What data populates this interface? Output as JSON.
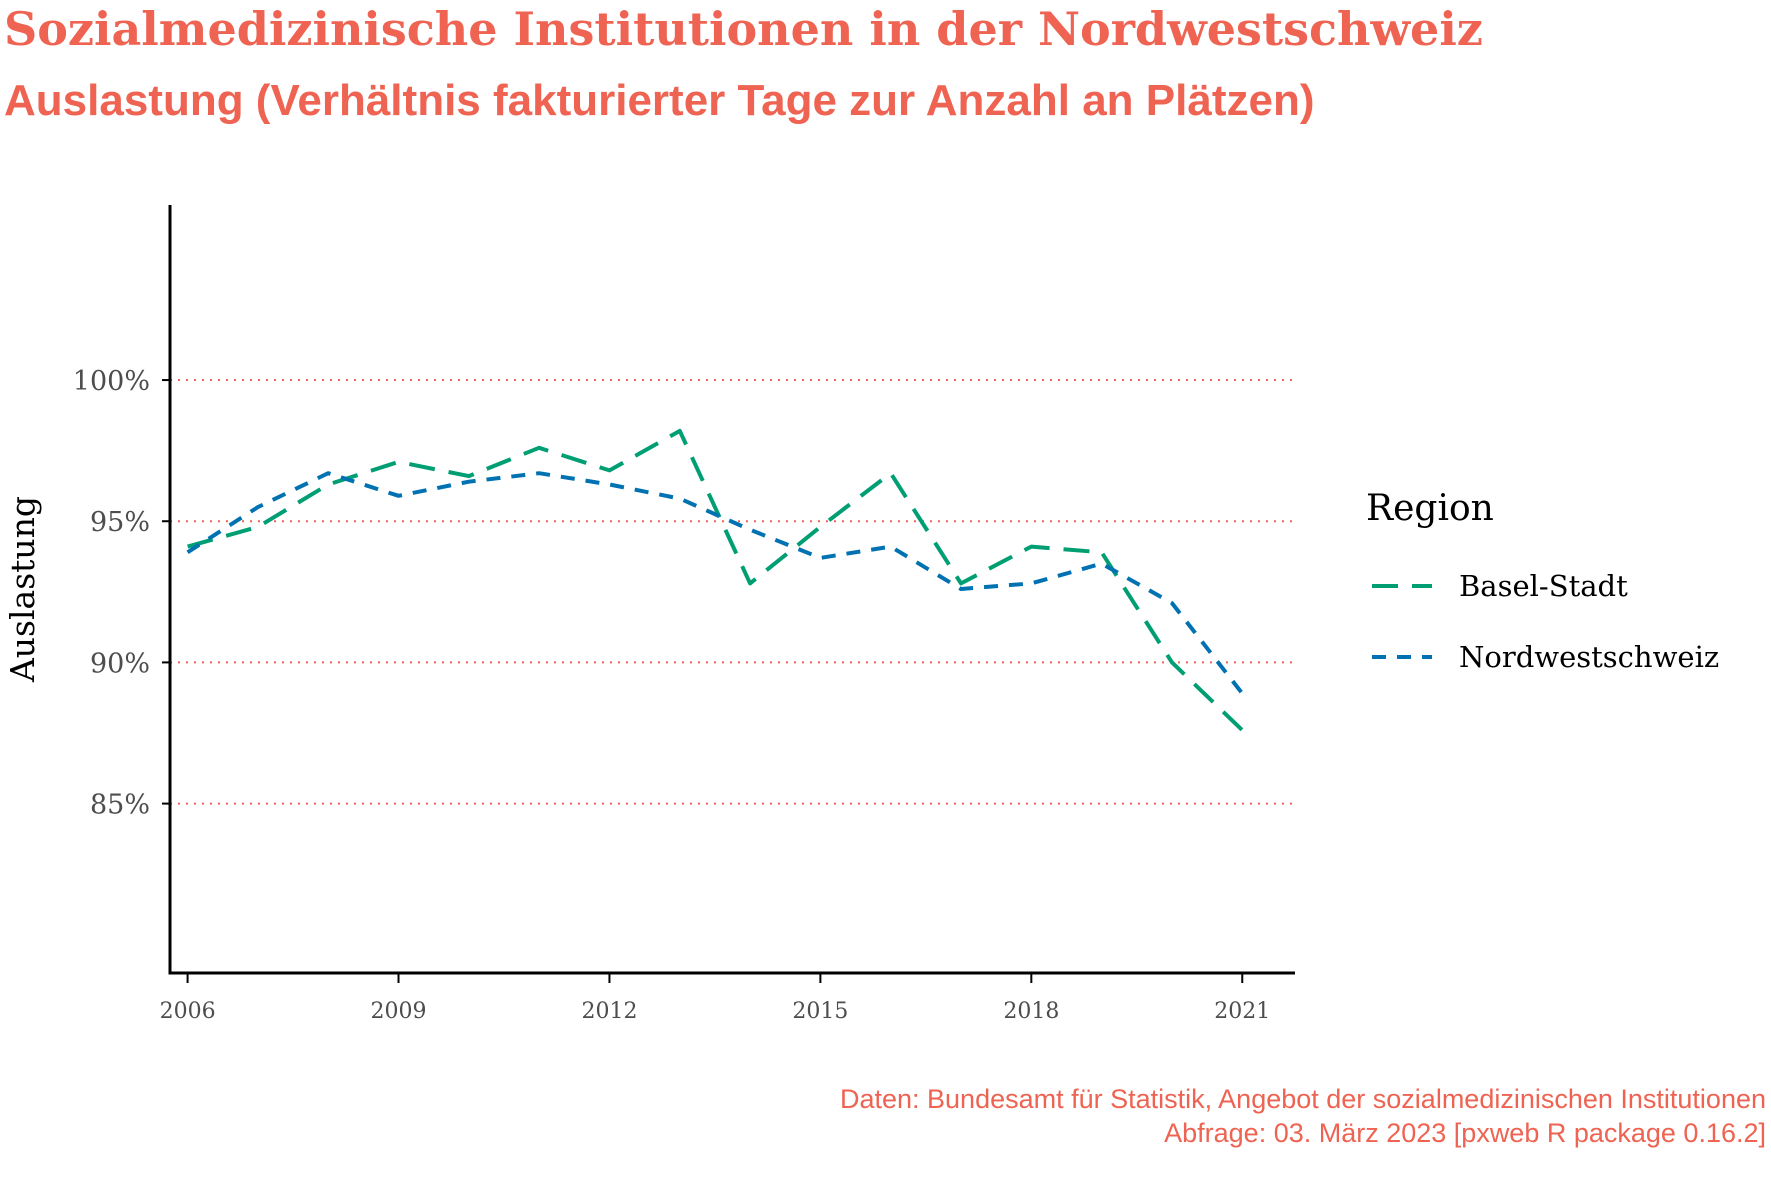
{
  "header": {
    "title": "Sozialmedizinische Institutionen in der Nordwestschweiz",
    "subtitle": "Auslastung (Verhältnis fakturierter Tage zur Anzahl an Plätzen)"
  },
  "caption": {
    "line1": "Daten: Bundesamt für Statistik, Angebot der sozialmedizinischen Institutionen",
    "line2": "Abfrage: 03. März 2023 [pxweb R package 0.16.2]"
  },
  "colors": {
    "accent": "#EE6352",
    "basel_stadt": "#009E73",
    "nordwestschweiz": "#0072B2",
    "axis": "#000000",
    "tick_text": "#4d4d4d",
    "gridline": "#EE6352"
  },
  "chart_data": {
    "type": "line",
    "xlabel": "",
    "ylabel": "Auslastung",
    "x": [
      2006,
      2007,
      2008,
      2009,
      2010,
      2011,
      2012,
      2013,
      2014,
      2015,
      2016,
      2017,
      2018,
      2019,
      2020,
      2021
    ],
    "xlim": [
      2005.75,
      2021.75
    ],
    "ylim": [
      79.0,
      106.2
    ],
    "x_ticks": [
      2006,
      2009,
      2012,
      2015,
      2018,
      2021
    ],
    "x_tick_labels": [
      "2006",
      "2009",
      "2012",
      "2015",
      "2018",
      "2021"
    ],
    "y_ticks": [
      85,
      90,
      95,
      100
    ],
    "y_tick_labels": [
      "85%",
      "90%",
      "95%",
      "100%"
    ],
    "grid": "horizontal dotted at y ticks",
    "legend": {
      "title": "Region",
      "placement": "right",
      "entries": [
        "Basel-Stadt",
        "Nordwestschweiz"
      ]
    },
    "series": [
      {
        "name": "Basel-Stadt",
        "color": "#009E73",
        "dash": "long",
        "values": [
          94.1,
          94.8,
          96.3,
          97.1,
          96.6,
          97.6,
          96.8,
          98.2,
          92.8,
          94.8,
          96.7,
          92.8,
          94.1,
          93.9,
          90.0,
          87.6
        ]
      },
      {
        "name": "Nordwestschweiz",
        "color": "#0072B2",
        "dash": "short",
        "values": [
          93.9,
          95.5,
          96.7,
          95.9,
          96.4,
          96.7,
          96.3,
          95.8,
          94.7,
          93.7,
          94.1,
          92.6,
          92.8,
          93.5,
          92.1,
          88.9
        ]
      }
    ]
  }
}
